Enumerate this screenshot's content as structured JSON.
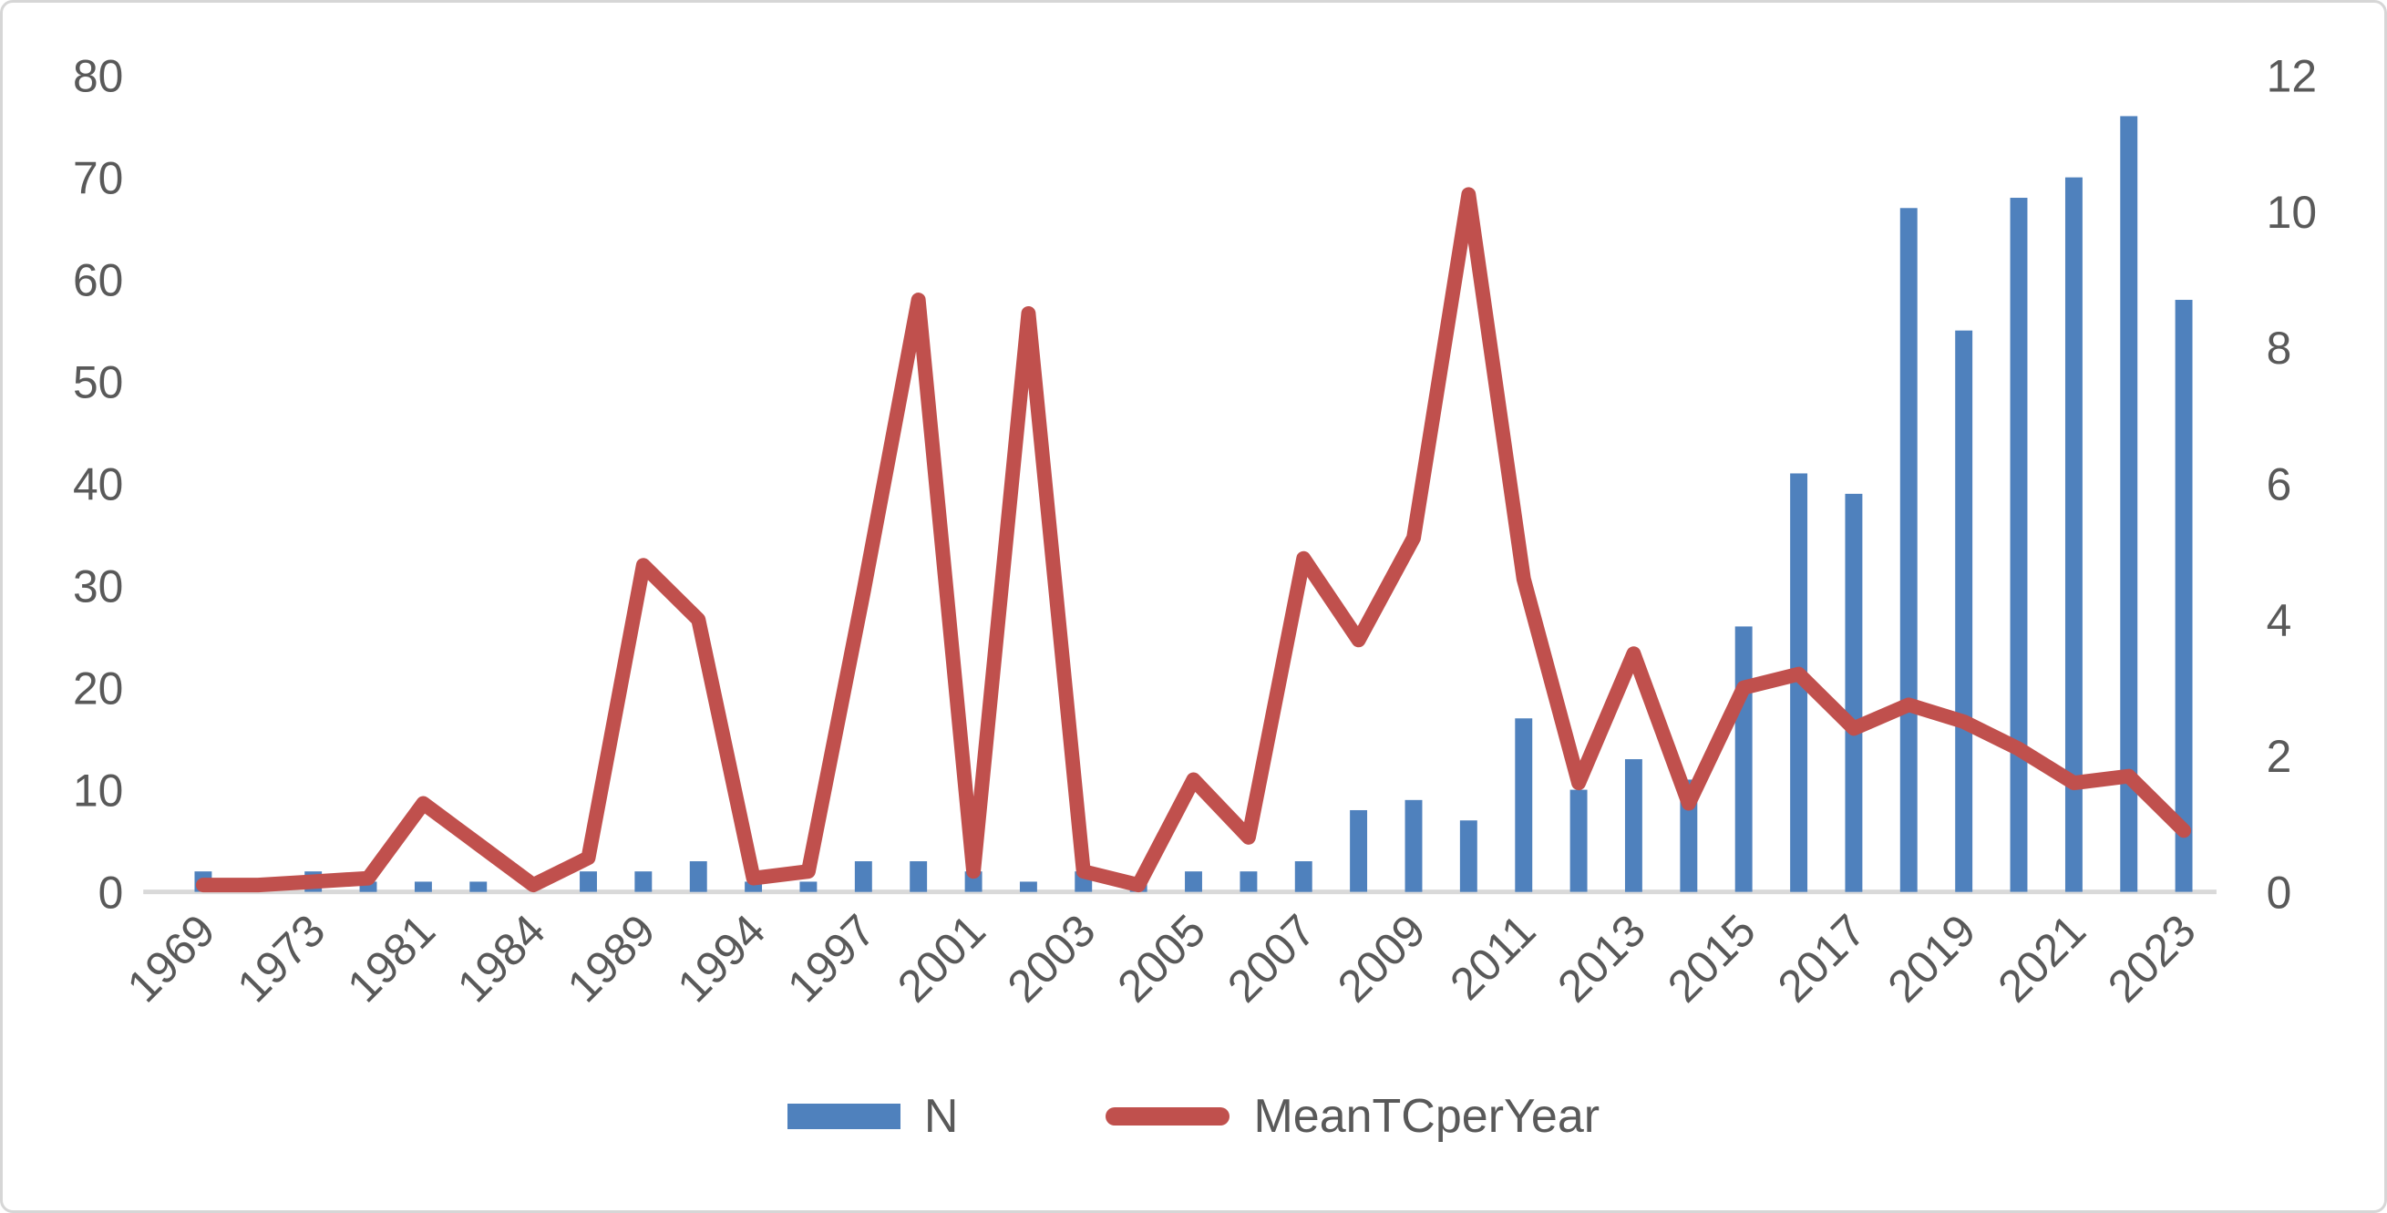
{
  "chart_data": {
    "type": "combo-bar-line",
    "title": "",
    "categories": [
      "1969",
      "",
      "1973",
      "",
      "1981",
      "",
      "1984",
      "",
      "1989",
      "",
      "1994",
      "",
      "1997",
      "",
      "2001",
      "",
      "2003",
      "",
      "2005",
      "",
      "2007",
      "",
      "2009",
      "",
      "2011",
      "",
      "2013",
      "",
      "2015",
      "",
      "2017",
      "",
      "2019",
      "",
      "2021",
      "",
      "2023"
    ],
    "series": [
      {
        "name": "N",
        "type": "bar",
        "axis": "left",
        "color": "#4F81BD",
        "values": [
          2,
          0,
          2,
          1,
          1,
          1,
          0,
          2,
          2,
          3,
          1,
          1,
          3,
          3,
          2,
          1,
          2,
          1,
          2,
          2,
          3,
          8,
          9,
          7,
          17,
          10,
          13,
          11,
          26,
          41,
          39,
          67,
          55,
          68,
          70,
          76,
          58
        ]
      },
      {
        "name": "MeanTCperYear",
        "type": "line",
        "axis": "right",
        "color": "#C0504D",
        "values": [
          0.1,
          0.1,
          0.15,
          0.2,
          1.3,
          0.7,
          0.1,
          0.5,
          4.8,
          4.0,
          0.2,
          0.3,
          4.4,
          8.7,
          0.3,
          8.5,
          0.3,
          0.1,
          1.65,
          0.8,
          4.9,
          3.7,
          5.2,
          10.25,
          4.6,
          1.6,
          3.5,
          1.3,
          3.0,
          3.2,
          2.4,
          2.75,
          2.5,
          2.1,
          1.6,
          1.7,
          0.9
        ]
      }
    ],
    "y_left": {
      "min": 0,
      "max": 80,
      "step": 10,
      "ticks": [
        0,
        10,
        20,
        30,
        40,
        50,
        60,
        70,
        80
      ]
    },
    "y_right": {
      "min": 0,
      "max": 12,
      "step": 2,
      "ticks": [
        0,
        2,
        4,
        6,
        8,
        10,
        12
      ]
    },
    "grid": false,
    "legend_position": "bottom",
    "axis_line_color": "#D9D9D9",
    "tick_label_color": "#595959"
  }
}
